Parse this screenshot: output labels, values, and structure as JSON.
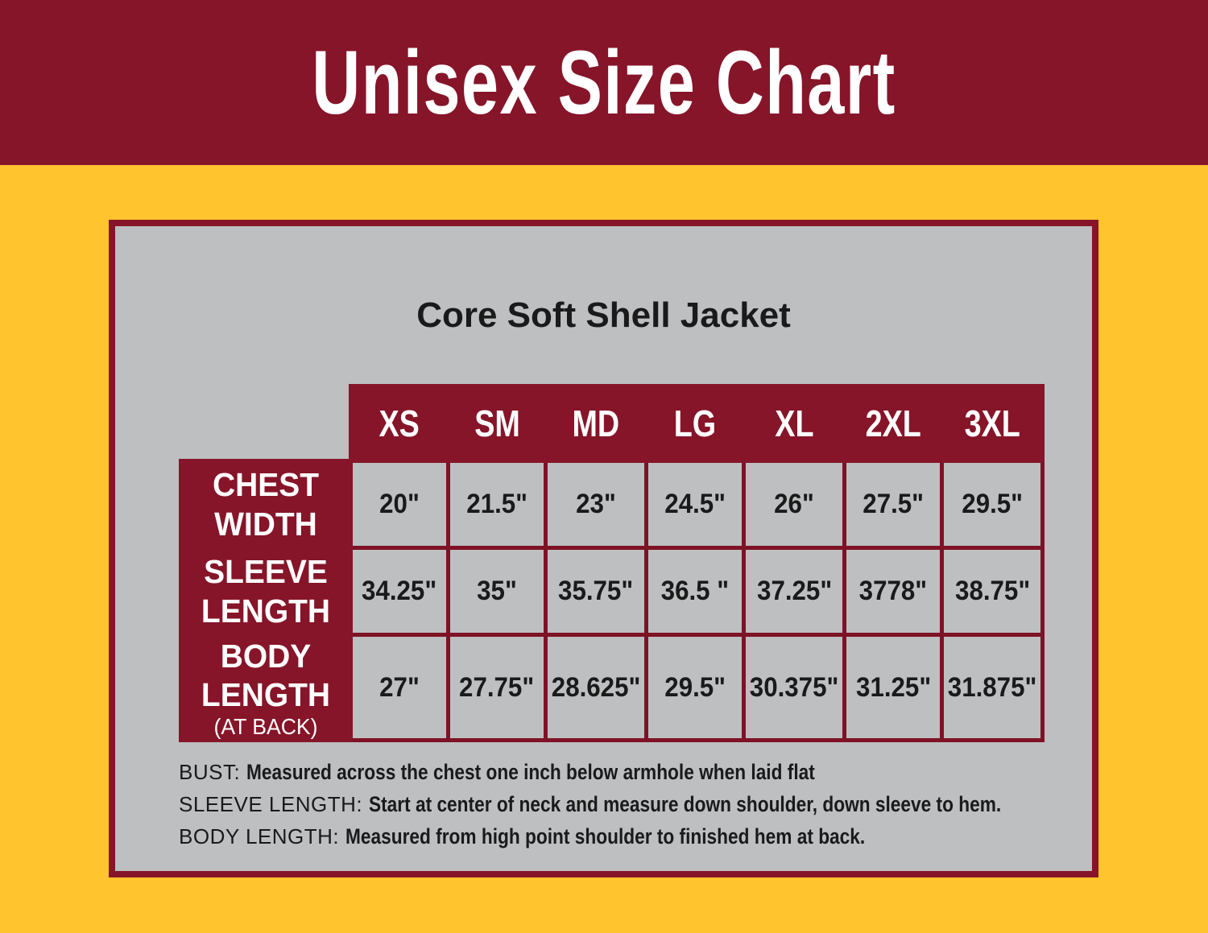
{
  "header": {
    "title": "Unisex Size Chart"
  },
  "panel": {
    "product_title": "Core Soft Shell Jacket",
    "table": {
      "size_columns": [
        "XS",
        "SM",
        "MD",
        "LG",
        "XL",
        "2XL",
        "3XL"
      ],
      "rows": [
        {
          "label_lines": [
            "CHEST",
            "WIDTH"
          ],
          "sublabel": "",
          "values": [
            "20\"",
            "21.5\"",
            "23\"",
            "24.5\"",
            "26\"",
            "27.5\"",
            "29.5\""
          ]
        },
        {
          "label_lines": [
            "SLEEVE",
            "LENGTH"
          ],
          "sublabel": "",
          "values": [
            "34.25\"",
            "35\"",
            "35.75\"",
            "36.5 \"",
            "37.25\"",
            "3778\"",
            "38.75\""
          ]
        },
        {
          "label_lines": [
            "BODY",
            "LENGTH"
          ],
          "sublabel": "(AT BACK)",
          "values": [
            "27\"",
            "27.75\"",
            "28.625\"",
            "29.5\"",
            "30.375\"",
            "31.25\"",
            "31.875\""
          ]
        }
      ]
    },
    "notes": [
      {
        "lead": "BUST:",
        "text": "Measured across the chest one inch below armhole when laid flat"
      },
      {
        "lead": "SLEEVE LENGTH:",
        "text": "Start at center of neck and measure down shoulder, down sleeve to hem."
      },
      {
        "lead": "BODY LENGTH:",
        "text": "Measured from high point shoulder to finished hem at back."
      }
    ]
  },
  "colors": {
    "maroon": "#861529",
    "grid_line": "#7E1226",
    "gold": "#FFC42E",
    "panel_gray": "#BDBFC1",
    "text_dark": "#1A1A1A",
    "white": "#FFFFFF"
  }
}
